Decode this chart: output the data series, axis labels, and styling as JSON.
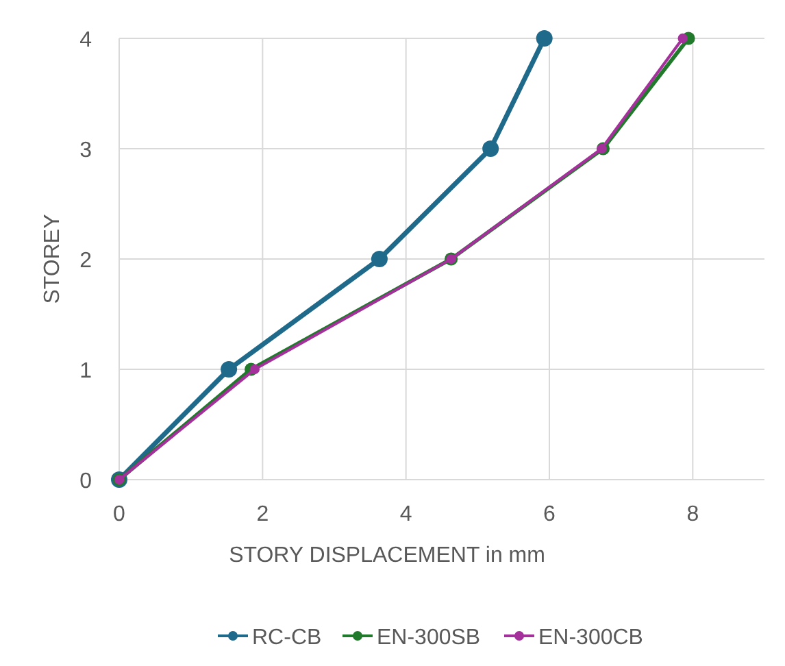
{
  "chart_data": {
    "type": "line",
    "xlabel": "STORY DISPLACEMENT in mm",
    "ylabel": "STOREY",
    "xlim": [
      0,
      9
    ],
    "xticks": [
      0,
      2,
      4,
      6,
      8
    ],
    "ylim": [
      0,
      4
    ],
    "yticks": [
      0,
      1,
      2,
      3,
      4
    ],
    "grid": true,
    "legend": "bottom",
    "marker": "circle",
    "line_style": "solid",
    "series": [
      {
        "name": "RC-CB",
        "color": "#1f6a8a",
        "x": [
          0,
          1.53,
          3.63,
          5.18,
          5.93
        ],
        "values": [
          0,
          1,
          2,
          3,
          4
        ]
      },
      {
        "name": "EN-300SB",
        "color": "#217a2c",
        "x": [
          0,
          1.84,
          4.63,
          6.75,
          7.94
        ],
        "values": [
          0,
          1,
          2,
          3,
          4
        ]
      },
      {
        "name": "EN-300CB",
        "color": "#a4309b",
        "x": [
          0,
          1.89,
          4.63,
          6.73,
          7.86
        ],
        "values": [
          0,
          1,
          2,
          3,
          4
        ]
      }
    ]
  }
}
